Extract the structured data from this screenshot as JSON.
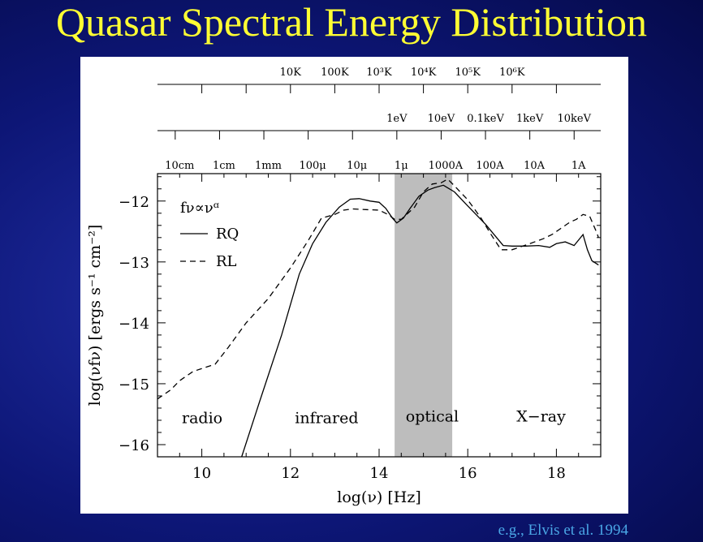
{
  "slide": {
    "title": "Quasar Spectral Energy Distribution",
    "citation": "e.g., Elvis et al. 1994"
  },
  "chart_data": {
    "type": "line",
    "title": "",
    "xlabel": "log(ν)  [Hz]",
    "ylabel": "log(νfν)  [ergs s⁻¹ cm⁻²]",
    "xlim": [
      9.0,
      19.0
    ],
    "ylim": [
      -16.2,
      -11.55
    ],
    "x_ticks": [
      "10",
      "12",
      "14",
      "16",
      "18"
    ],
    "y_ticks": [
      "−12",
      "−13",
      "−14",
      "−15",
      "−16"
    ],
    "x_tick_values": [
      10,
      12,
      14,
      16,
      18
    ],
    "y_tick_values": [
      -12,
      -13,
      -14,
      -15,
      -16
    ],
    "top_axes": [
      {
        "name": "temperature",
        "ticks": [
          {
            "label": "10K",
            "x": 12.0
          },
          {
            "label": "100K",
            "x": 13.0
          },
          {
            "label": "10³K",
            "x": 14.0
          },
          {
            "label": "10⁴K",
            "x": 15.0
          },
          {
            "label": "10⁵K",
            "x": 16.0
          },
          {
            "label": "10⁶K",
            "x": 17.0
          }
        ],
        "minor_ticks": [
          10.0,
          11.0,
          12.0,
          13.0,
          14.0,
          15.0,
          16.0,
          17.0,
          18.0
        ]
      },
      {
        "name": "energy",
        "ticks": [
          {
            "label": "1eV",
            "x": 14.4
          },
          {
            "label": "10eV",
            "x": 15.4
          },
          {
            "label": "0.1keV",
            "x": 16.4
          },
          {
            "label": "1keV",
            "x": 17.4
          },
          {
            "label": "10keV",
            "x": 18.4
          }
        ],
        "minor_ticks": [
          9.4,
          10.4,
          11.4,
          12.4,
          13.4,
          14.4,
          15.4,
          16.4,
          17.4,
          18.4
        ]
      },
      {
        "name": "wavelength",
        "ticks": [
          {
            "label": "10cm",
            "x": 9.5
          },
          {
            "label": "1cm",
            "x": 10.5
          },
          {
            "label": "1mm",
            "x": 11.5
          },
          {
            "label": "100μ",
            "x": 12.5
          },
          {
            "label": "10μ",
            "x": 13.5
          },
          {
            "label": "1μ",
            "x": 14.5
          },
          {
            "label": "1000A",
            "x": 15.5
          },
          {
            "label": "100A",
            "x": 16.5
          },
          {
            "label": "10A",
            "x": 17.5
          },
          {
            "label": "1A",
            "x": 18.5
          }
        ]
      }
    ],
    "legend": {
      "position": "top-left",
      "formula": "fν∝νᵅ",
      "entries": [
        {
          "label": "RQ",
          "style": "solid"
        },
        {
          "label": "RL",
          "style": "dashed"
        }
      ]
    },
    "shaded_band": {
      "label": "optical",
      "x_range": [
        14.35,
        15.65
      ],
      "color": "#bdbdbd"
    },
    "region_labels": [
      {
        "text": "radio",
        "x": 9.55,
        "y": -15.65
      },
      {
        "text": "infrared",
        "x": 12.1,
        "y": -15.65
      },
      {
        "text": "optical",
        "x": 14.6,
        "y": -15.62
      },
      {
        "text": "X−ray",
        "x": 17.1,
        "y": -15.62
      }
    ],
    "series": [
      {
        "name": "RQ",
        "style": "solid",
        "x": [
          10.9,
          11.3,
          11.8,
          12.2,
          12.5,
          12.8,
          13.1,
          13.35,
          13.55,
          13.8,
          14.0,
          14.15,
          14.3,
          14.4,
          14.55,
          14.7,
          14.9,
          15.1,
          15.25,
          15.45,
          15.7,
          16.0,
          16.4,
          16.8,
          17.0,
          17.3,
          17.6,
          17.85,
          18.0,
          18.2,
          18.4,
          18.6,
          18.7,
          18.8,
          18.95
        ],
        "y": [
          -16.2,
          -15.3,
          -14.2,
          -13.2,
          -12.7,
          -12.35,
          -12.1,
          -11.97,
          -11.96,
          -12.0,
          -12.02,
          -12.12,
          -12.28,
          -12.36,
          -12.28,
          -12.12,
          -11.92,
          -11.82,
          -11.78,
          -11.74,
          -11.85,
          -12.08,
          -12.38,
          -12.73,
          -12.74,
          -12.74,
          -12.73,
          -12.76,
          -12.7,
          -12.67,
          -12.73,
          -12.55,
          -12.8,
          -12.98,
          -13.05
        ]
      },
      {
        "name": "RL",
        "style": "dashed",
        "x": [
          9.0,
          9.3,
          9.5,
          9.8,
          10.0,
          10.3,
          10.6,
          11.0,
          11.5,
          12.0,
          12.4,
          12.7,
          13.0,
          13.2,
          13.4,
          13.7,
          14.0,
          14.2,
          14.35,
          14.5,
          14.8,
          15.0,
          15.2,
          15.4,
          15.55,
          15.7,
          16.0,
          16.3,
          16.5,
          16.75,
          17.0,
          17.4,
          17.7,
          17.9,
          18.1,
          18.3,
          18.45,
          18.6,
          18.75,
          18.9,
          18.95
        ],
        "y": [
          -15.25,
          -15.1,
          -14.95,
          -14.8,
          -14.75,
          -14.68,
          -14.4,
          -14.0,
          -13.6,
          -13.1,
          -12.65,
          -12.28,
          -12.22,
          -12.15,
          -12.13,
          -12.14,
          -12.15,
          -12.22,
          -12.3,
          -12.3,
          -12.1,
          -11.85,
          -11.72,
          -11.7,
          -11.64,
          -11.75,
          -11.98,
          -12.28,
          -12.52,
          -12.8,
          -12.8,
          -12.7,
          -12.62,
          -12.55,
          -12.45,
          -12.35,
          -12.3,
          -12.22,
          -12.25,
          -12.5,
          -12.6
        ]
      }
    ]
  }
}
